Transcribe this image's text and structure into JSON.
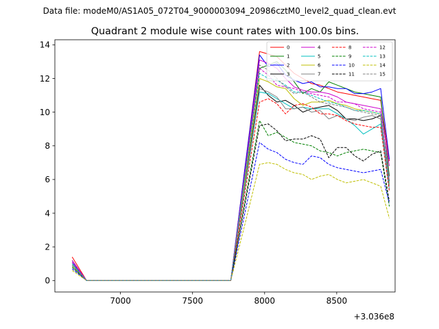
{
  "chart_data": {
    "type": "line",
    "suptitle": "Data file: modeM0/AS1A05_072T04_9000003094_20986cztM0_level2_quad_clean.evt",
    "title": "Quadrant 2 module wise count rates with 100.0s bins.",
    "xlabel": "",
    "ylabel": "",
    "x_offset_label": "+3.036e8",
    "xlim": [
      6545,
      8905
    ],
    "ylim": [
      -0.68,
      14.3
    ],
    "x_ticks": [
      7000,
      7500,
      8000,
      8500
    ],
    "x_tick_labels": [
      "7000",
      "7500",
      "8000",
      "8500"
    ],
    "y_ticks": [
      0,
      2,
      4,
      6,
      8,
      10,
      12,
      14
    ],
    "y_tick_labels": [
      "0",
      "2",
      "4",
      "6",
      "8",
      "10",
      "12",
      "14"
    ],
    "grid": false,
    "legend_position": "top-right",
    "legend_columns": 4,
    "x": [
      6665,
      6765,
      6865,
      6965,
      7065,
      7165,
      7265,
      7365,
      7465,
      7565,
      7665,
      7765,
      7865,
      7965,
      8025,
      8085,
      8145,
      8205,
      8265,
      8325,
      8385,
      8445,
      8505,
      8565,
      8625,
      8685,
      8745,
      8805,
      8865
    ],
    "series": [
      {
        "name": "0",
        "color": "#ff0000",
        "dashed": false,
        "values": [
          1.4,
          0,
          0,
          0,
          0,
          0,
          0,
          0,
          0,
          0,
          0,
          0,
          6.8,
          13.6,
          13.45,
          13.3,
          12.8,
          12.3,
          12.0,
          11.7,
          11.6,
          11.4,
          11.2,
          11.1,
          11.0,
          10.9,
          10.8,
          10.7,
          7.1
        ]
      },
      {
        "name": "1",
        "color": "#008000",
        "dashed": false,
        "values": [
          1.2,
          0,
          0,
          0,
          0,
          0,
          0,
          0,
          0,
          0,
          0,
          0,
          6.3,
          12.6,
          12.8,
          13.0,
          12.5,
          11.8,
          11.1,
          11.4,
          11.2,
          11.8,
          11.6,
          11.4,
          11.2,
          11.1,
          11.0,
          10.9,
          6.2
        ]
      },
      {
        "name": "2",
        "color": "#0000ff",
        "dashed": false,
        "values": [
          1.1,
          0,
          0,
          0,
          0,
          0,
          0,
          0,
          0,
          0,
          0,
          0,
          6.8,
          13.4,
          12.7,
          12.9,
          12.2,
          11.9,
          11.7,
          11.8,
          11.5,
          11.5,
          11.4,
          11.4,
          11.1,
          11.1,
          11.2,
          11.4,
          7.2
        ]
      },
      {
        "name": "3",
        "color": "#000000",
        "dashed": false,
        "values": [
          1.0,
          0,
          0,
          0,
          0,
          0,
          0,
          0,
          0,
          0,
          0,
          0,
          5.8,
          11.6,
          11.0,
          10.6,
          10.7,
          10.4,
          10.0,
          10.2,
          10.3,
          10.4,
          10.1,
          9.6,
          9.6,
          9.5,
          9.6,
          9.8,
          5.9
        ]
      },
      {
        "name": "4",
        "color": "#cc00cc",
        "dashed": false,
        "values": [
          1.2,
          0,
          0,
          0,
          0,
          0,
          0,
          0,
          0,
          0,
          0,
          0,
          6.5,
          13.1,
          12.9,
          12.6,
          12.0,
          11.5,
          11.3,
          11.2,
          11.2,
          11.1,
          10.9,
          10.6,
          10.5,
          10.4,
          10.3,
          10.2,
          6.8
        ]
      },
      {
        "name": "5",
        "color": "#00bfbf",
        "dashed": false,
        "values": [
          1.0,
          0,
          0,
          0,
          0,
          0,
          0,
          0,
          0,
          0,
          0,
          0,
          5.6,
          11.2,
          11.1,
          10.8,
          10.5,
          10.2,
          10.3,
          10.2,
          10.2,
          10.2,
          9.9,
          9.6,
          9.2,
          8.7,
          9.0,
          9.3,
          5.4
        ]
      },
      {
        "name": "6",
        "color": "#bfbf00",
        "dashed": false,
        "values": [
          0.9,
          0,
          0,
          0,
          0,
          0,
          0,
          0,
          0,
          0,
          0,
          0,
          6.0,
          12.0,
          11.8,
          11.5,
          11.4,
          10.8,
          10.4,
          10.6,
          10.6,
          10.7,
          10.5,
          10.4,
          10.2,
          10.1,
          10.0,
          9.9,
          5.7
        ]
      },
      {
        "name": "7",
        "color": "#808080",
        "dashed": false,
        "values": [
          0.8,
          0,
          0,
          0,
          0,
          0,
          0,
          0,
          0,
          0,
          0,
          0,
          5.7,
          11.4,
          11.2,
          10.9,
          10.2,
          10.2,
          10.3,
          10.0,
          10.1,
          9.6,
          9.8,
          9.6,
          9.5,
          9.7,
          9.8,
          9.6,
          5.6
        ]
      },
      {
        "name": "8",
        "color": "#ff0000",
        "dashed": true,
        "values": [
          1.0,
          0,
          0,
          0,
          0,
          0,
          0,
          0,
          0,
          0,
          0,
          0,
          5.3,
          10.6,
          10.8,
          10.5,
          9.9,
          10.4,
          10.5,
          10.3,
          9.9,
          9.9,
          9.8,
          9.5,
          9.3,
          9.2,
          9.1,
          9.1,
          5.3
        ]
      },
      {
        "name": "9",
        "color": "#008000",
        "dashed": true,
        "values": [
          0.8,
          0,
          0,
          0,
          0,
          0,
          0,
          0,
          0,
          0,
          0,
          0,
          4.8,
          9.5,
          8.6,
          8.8,
          8.5,
          8.2,
          8.1,
          8.0,
          7.7,
          7.6,
          7.4,
          7.6,
          7.7,
          7.8,
          7.7,
          7.6,
          4.4
        ]
      },
      {
        "name": "10",
        "color": "#0000ff",
        "dashed": true,
        "values": [
          0.7,
          0,
          0,
          0,
          0,
          0,
          0,
          0,
          0,
          0,
          0,
          0,
          4.1,
          8.2,
          7.8,
          7.6,
          7.2,
          7.0,
          6.9,
          7.4,
          7.3,
          6.9,
          6.7,
          6.6,
          6.5,
          6.4,
          6.5,
          6.6,
          4.6
        ]
      },
      {
        "name": "11",
        "color": "#000000",
        "dashed": true,
        "values": [
          0.9,
          0,
          0,
          0,
          0,
          0,
          0,
          0,
          0,
          0,
          0,
          0,
          4.6,
          9.2,
          9.3,
          8.9,
          8.3,
          8.4,
          8.4,
          8.6,
          8.4,
          7.3,
          7.9,
          7.9,
          7.4,
          7.1,
          7.5,
          7.7,
          4.7
        ]
      },
      {
        "name": "12",
        "color": "#cc00cc",
        "dashed": true,
        "values": [
          1.1,
          0,
          0,
          0,
          0,
          0,
          0,
          0,
          0,
          0,
          0,
          0,
          6.3,
          12.6,
          12.2,
          11.6,
          11.5,
          11.4,
          11.2,
          11.1,
          11.0,
          10.9,
          10.6,
          10.6,
          10.5,
          10.2,
          10.1,
          10.0,
          6.0
        ]
      },
      {
        "name": "13",
        "color": "#00bfbf",
        "dashed": true,
        "values": [
          1.0,
          0,
          0,
          0,
          0,
          0,
          0,
          0,
          0,
          0,
          0,
          0,
          6.2,
          12.3,
          12.0,
          11.9,
          11.6,
          11.2,
          11.2,
          11.0,
          10.8,
          10.6,
          10.5,
          10.3,
          10.1,
          10.1,
          10.0,
          9.9,
          5.8
        ]
      },
      {
        "name": "14",
        "color": "#bfbf00",
        "dashed": true,
        "values": [
          0.6,
          0,
          0,
          0,
          0,
          0,
          0,
          0,
          0,
          0,
          0,
          0,
          3.4,
          6.9,
          7.0,
          6.9,
          6.6,
          6.4,
          6.3,
          6.0,
          6.2,
          6.3,
          6.0,
          5.8,
          5.9,
          6.0,
          5.8,
          5.6,
          3.7
        ]
      },
      {
        "name": "15",
        "color": "#808080",
        "dashed": true,
        "values": [
          0.9,
          0,
          0,
          0,
          0,
          0,
          0,
          0,
          0,
          0,
          0,
          0,
          6.4,
          12.8,
          12.5,
          12.0,
          11.5,
          11.1,
          11.2,
          10.9,
          10.6,
          10.5,
          10.4,
          10.3,
          10.1,
          10.0,
          9.9,
          9.8,
          5.9
        ]
      }
    ]
  }
}
